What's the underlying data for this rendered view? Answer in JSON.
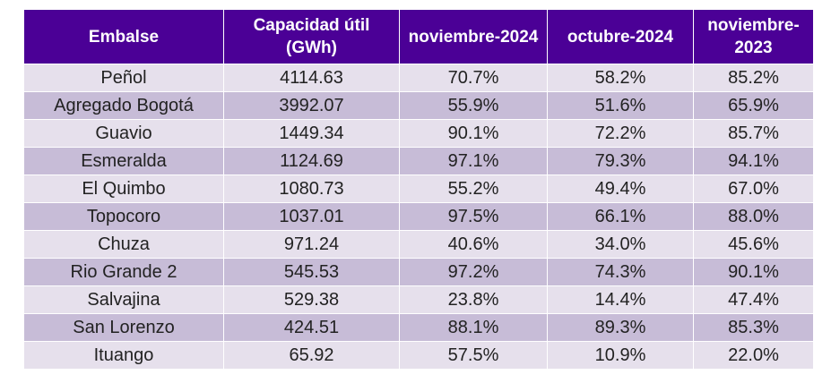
{
  "table": {
    "headers": [
      "Embalse",
      "Capacidad útil (GWh)",
      "noviembre-2024",
      "octubre-2024",
      "noviembre-2023"
    ],
    "rows": [
      [
        "Peñol",
        "4114.63",
        "70.7%",
        "58.2%",
        "85.2%"
      ],
      [
        "Agregado Bogotá",
        "3992.07",
        "55.9%",
        "51.6%",
        "65.9%"
      ],
      [
        "Guavio",
        "1449.34",
        "90.1%",
        "72.2%",
        "85.7%"
      ],
      [
        "Esmeralda",
        "1124.69",
        "97.1%",
        "79.3%",
        "94.1%"
      ],
      [
        "El Quimbo",
        "1080.73",
        "55.2%",
        "49.4%",
        "67.0%"
      ],
      [
        "Topocoro",
        "1037.01",
        "97.5%",
        "66.1%",
        "88.0%"
      ],
      [
        "Chuza",
        "971.24",
        "40.6%",
        "34.0%",
        "45.6%"
      ],
      [
        "Rio Grande 2",
        "545.53",
        "97.2%",
        "74.3%",
        "90.1%"
      ],
      [
        "Salvajina",
        "529.38",
        "23.8%",
        "14.4%",
        "47.4%"
      ],
      [
        "San Lorenzo",
        "424.51",
        "88.1%",
        "89.3%",
        "85.3%"
      ],
      [
        "Ituango",
        "65.92",
        "57.5%",
        "10.9%",
        "22.0%"
      ]
    ]
  },
  "colors": {
    "header_bg": "#4b0096",
    "row_light": "#e6e0ec",
    "row_dark": "#c7bcd7"
  }
}
